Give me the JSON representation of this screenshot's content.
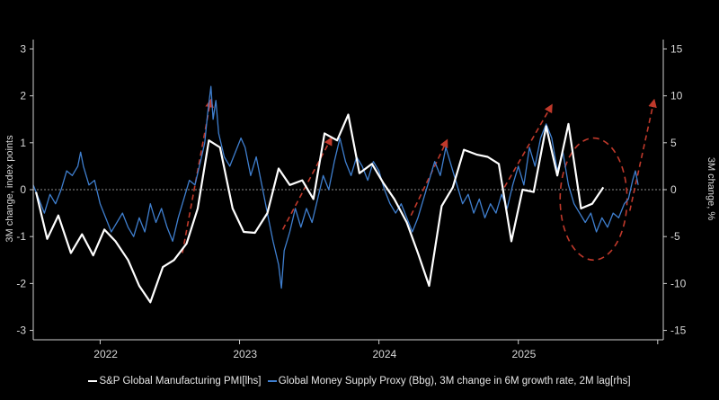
{
  "chart_data": {
    "type": "line",
    "title": "",
    "y_left": {
      "label": "3M change, index points",
      "ylim": [
        -3.2,
        3.2
      ],
      "ticks": [
        -3,
        -2,
        -1,
        0,
        1,
        2,
        3
      ]
    },
    "y_right": {
      "label": "3M change, %",
      "ylim": [
        -16,
        16
      ],
      "ticks": [
        -15,
        -10,
        -5,
        0,
        5,
        10,
        15
      ]
    },
    "x_axis": {
      "range": [
        2021.48,
        2026.0
      ],
      "year_labels": [
        "2022",
        "2023",
        "2024",
        "2025"
      ],
      "year_label_positions": [
        2022.0,
        2023.0,
        2024.0,
        2025.0
      ]
    },
    "zero_line": {
      "style": "dotted"
    },
    "series": [
      {
        "name": "S&P Global Manufacturing PMI[lhs]",
        "axis": "left",
        "color": "#ffffff",
        "points": [
          [
            2021.5,
            -0.05
          ],
          [
            2021.58,
            -1.05
          ],
          [
            2021.66,
            -0.55
          ],
          [
            2021.75,
            -1.35
          ],
          [
            2021.83,
            -0.95
          ],
          [
            2021.91,
            -1.4
          ],
          [
            2021.99,
            -0.85
          ],
          [
            2022.07,
            -1.1
          ],
          [
            2022.16,
            -1.5
          ],
          [
            2022.24,
            -2.05
          ],
          [
            2022.32,
            -2.4
          ],
          [
            2022.41,
            -1.65
          ],
          [
            2022.49,
            -1.5
          ],
          [
            2022.58,
            -1.15
          ],
          [
            2022.66,
            -0.4
          ],
          [
            2022.74,
            1.05
          ],
          [
            2022.82,
            0.9
          ],
          [
            2022.91,
            -0.4
          ],
          [
            2022.99,
            -0.9
          ],
          [
            2023.07,
            -0.92
          ],
          [
            2023.16,
            -0.5
          ],
          [
            2023.24,
            0.45
          ],
          [
            2023.32,
            0.1
          ],
          [
            2023.41,
            0.2
          ],
          [
            2023.49,
            -0.2
          ],
          [
            2023.57,
            1.2
          ],
          [
            2023.66,
            1.05
          ],
          [
            2023.74,
            1.6
          ],
          [
            2023.82,
            0.35
          ],
          [
            2023.91,
            0.55
          ],
          [
            2023.99,
            0.15
          ],
          [
            2024.07,
            -0.2
          ],
          [
            2024.16,
            -0.7
          ],
          [
            2024.24,
            -1.35
          ],
          [
            2024.32,
            -2.05
          ],
          [
            2024.41,
            -0.35
          ],
          [
            2024.49,
            0.05
          ],
          [
            2024.57,
            0.85
          ],
          [
            2024.66,
            0.75
          ],
          [
            2024.74,
            0.7
          ],
          [
            2024.82,
            0.55
          ],
          [
            2024.91,
            -1.1
          ],
          [
            2024.99,
            0.0
          ],
          [
            2025.07,
            -0.05
          ],
          [
            2025.16,
            1.35
          ],
          [
            2025.24,
            0.3
          ],
          [
            2025.32,
            1.4
          ],
          [
            2025.41,
            -0.4
          ],
          [
            2025.49,
            -0.3
          ],
          [
            2025.57,
            0.05
          ]
        ]
      },
      {
        "name": "Global Money Supply Proxy (Bbg), 3M change in 6M growth rate, 2M lag[rhs]",
        "axis": "right",
        "color": "#3f7fcf",
        "points": [
          [
            2021.48,
            0.5
          ],
          [
            2021.52,
            -1.0
          ],
          [
            2021.56,
            -2.5
          ],
          [
            2021.6,
            -0.5
          ],
          [
            2021.64,
            -1.5
          ],
          [
            2021.68,
            0.0
          ],
          [
            2021.72,
            2.0
          ],
          [
            2021.76,
            1.5
          ],
          [
            2021.8,
            2.5
          ],
          [
            2021.82,
            4.0
          ],
          [
            2021.84,
            2.5
          ],
          [
            2021.88,
            0.5
          ],
          [
            2021.92,
            1.0
          ],
          [
            2021.96,
            -1.5
          ],
          [
            2022.0,
            -3.0
          ],
          [
            2022.04,
            -4.5
          ],
          [
            2022.08,
            -3.5
          ],
          [
            2022.12,
            -2.5
          ],
          [
            2022.16,
            -4.0
          ],
          [
            2022.2,
            -5.0
          ],
          [
            2022.24,
            -3.0
          ],
          [
            2022.28,
            -4.5
          ],
          [
            2022.32,
            -1.5
          ],
          [
            2022.36,
            -3.5
          ],
          [
            2022.4,
            -2.0
          ],
          [
            2022.44,
            -4.0
          ],
          [
            2022.48,
            -5.5
          ],
          [
            2022.52,
            -3.0
          ],
          [
            2022.56,
            -1.0
          ],
          [
            2022.6,
            1.0
          ],
          [
            2022.64,
            0.5
          ],
          [
            2022.68,
            3.0
          ],
          [
            2022.71,
            5.0
          ],
          [
            2022.73,
            8.0
          ],
          [
            2022.755,
            11.0
          ],
          [
            2022.77,
            7.5
          ],
          [
            2022.79,
            9.5
          ],
          [
            2022.81,
            6.0
          ],
          [
            2022.85,
            3.5
          ],
          [
            2022.89,
            2.5
          ],
          [
            2022.93,
            4.0
          ],
          [
            2022.97,
            5.5
          ],
          [
            2023.0,
            4.5
          ],
          [
            2023.04,
            1.5
          ],
          [
            2023.08,
            3.5
          ],
          [
            2023.12,
            0.5
          ],
          [
            2023.16,
            -2.5
          ],
          [
            2023.2,
            -5.5
          ],
          [
            2023.24,
            -8.0
          ],
          [
            2023.26,
            -10.5
          ],
          [
            2023.28,
            -6.5
          ],
          [
            2023.32,
            -4.5
          ],
          [
            2023.36,
            -2.0
          ],
          [
            2023.4,
            -4.0
          ],
          [
            2023.44,
            -2.0
          ],
          [
            2023.48,
            -3.5
          ],
          [
            2023.52,
            -1.0
          ],
          [
            2023.56,
            1.5
          ],
          [
            2023.6,
            0.0
          ],
          [
            2023.64,
            3.0
          ],
          [
            2023.68,
            5.5
          ],
          [
            2023.72,
            3.0
          ],
          [
            2023.76,
            1.5
          ],
          [
            2023.8,
            3.5
          ],
          [
            2023.84,
            2.5
          ],
          [
            2023.88,
            1.0
          ],
          [
            2023.92,
            3.0
          ],
          [
            2023.96,
            2.0
          ],
          [
            2024.0,
            0.0
          ],
          [
            2024.04,
            -1.5
          ],
          [
            2024.08,
            -2.5
          ],
          [
            2024.12,
            -1.5
          ],
          [
            2024.16,
            -3.0
          ],
          [
            2024.2,
            -4.5
          ],
          [
            2024.24,
            -3.0
          ],
          [
            2024.28,
            -1.0
          ],
          [
            2024.32,
            1.0
          ],
          [
            2024.36,
            3.0
          ],
          [
            2024.4,
            1.5
          ],
          [
            2024.44,
            4.5
          ],
          [
            2024.48,
            2.5
          ],
          [
            2024.52,
            0.5
          ],
          [
            2024.56,
            -1.5
          ],
          [
            2024.6,
            -0.5
          ],
          [
            2024.64,
            -2.5
          ],
          [
            2024.68,
            -1.0
          ],
          [
            2024.72,
            -3.0
          ],
          [
            2024.76,
            -1.5
          ],
          [
            2024.8,
            -2.5
          ],
          [
            2024.84,
            -0.5
          ],
          [
            2024.88,
            -2.0
          ],
          [
            2024.92,
            0.5
          ],
          [
            2024.96,
            2.5
          ],
          [
            2025.0,
            0.5
          ],
          [
            2025.04,
            4.5
          ],
          [
            2025.08,
            2.5
          ],
          [
            2025.12,
            5.5
          ],
          [
            2025.16,
            7.0
          ],
          [
            2025.2,
            5.5
          ],
          [
            2025.24,
            2.0
          ],
          [
            2025.28,
            4.0
          ],
          [
            2025.32,
            0.5
          ],
          [
            2025.36,
            -1.5
          ],
          [
            2025.4,
            -2.5
          ],
          [
            2025.44,
            -3.5
          ],
          [
            2025.48,
            -2.5
          ],
          [
            2025.52,
            -4.5
          ],
          [
            2025.56,
            -3.0
          ],
          [
            2025.6,
            -4.0
          ],
          [
            2025.64,
            -2.5
          ],
          [
            2025.68,
            -3.0
          ],
          [
            2025.72,
            -1.5
          ],
          [
            2025.75,
            -1.0
          ],
          [
            2025.78,
            1.0
          ],
          [
            2025.8,
            2.0
          ],
          [
            2025.82,
            0.5
          ]
        ]
      }
    ],
    "annotations": [
      {
        "type": "dashed-arrow",
        "color": "#c0392b",
        "from": [
          2022.55,
          -1.35
        ],
        "to": [
          2022.75,
          1.85
        ]
      },
      {
        "type": "dashed-arrow",
        "color": "#c0392b",
        "from": [
          2023.27,
          -0.85
        ],
        "to": [
          2023.61,
          1.05
        ]
      },
      {
        "type": "dashed-arrow",
        "color": "#c0392b",
        "from": [
          2024.19,
          -0.55
        ],
        "to": [
          2024.44,
          1.0
        ]
      },
      {
        "type": "dashed-arrow",
        "color": "#c0392b",
        "from": [
          2024.86,
          0.05
        ],
        "to": [
          2025.19,
          1.75
        ]
      },
      {
        "type": "dashed-arrow",
        "color": "#c0392b",
        "from": [
          2025.76,
          -0.45
        ],
        "to": [
          2025.93,
          1.85
        ]
      },
      {
        "type": "dashed-ellipse",
        "color": "#c0392b",
        "center": [
          2025.5,
          -0.2
        ],
        "radius_years": 0.24,
        "radius_units": 1.3
      }
    ]
  }
}
